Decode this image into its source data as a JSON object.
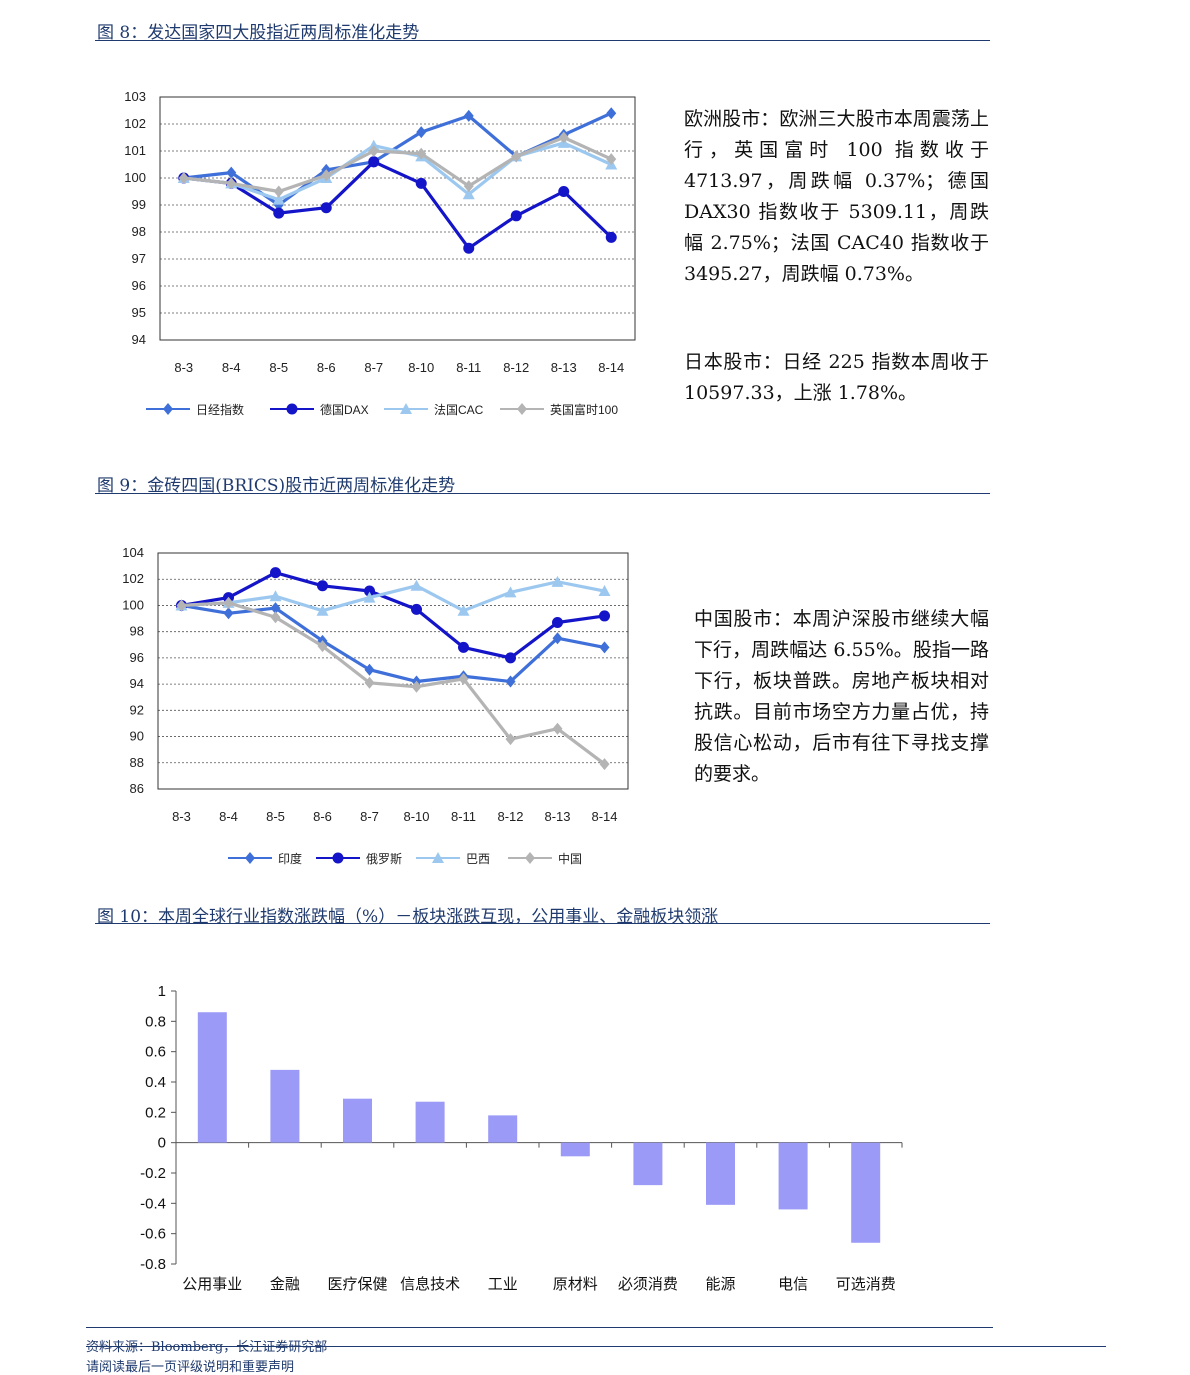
{
  "figures": {
    "fig8_title": "图 8：发达国家四大股指近两周标准化走势",
    "fig9_title": "图 9：金砖四国(BRICS)股市近两周标准化走势",
    "fig10_title": "图 10：本周全球行业指数涨跌幅（%）－板块涨跌互现，公用事业、金融板块领涨"
  },
  "commentary": {
    "europe": "欧洲股市：欧洲三大股市本周震荡上行，英国富时 100 指数收于 4713.97，周跌幅 0.37%；德国 DAX30 指数收于 5309.11，周跌幅 2.75%；法国 CAC40 指数收于 3495.27，周跌幅 0.73%。",
    "japan": "日本股市：日经 225 指数本周收于 10597.33，上涨 1.78%。",
    "china": "中国股市：本周沪深股市继续大幅下行，周跌幅达 6.55%。股指一路下行，板块普跌。房地产板块相对抗跌。目前市场空方力量占优，持股信心松动，后市有往下寻找支撑的要求。"
  },
  "footer": {
    "source": "资料来源：Bloomberg，长江证券研究部",
    "disclaimer": "请阅读最后一页评级说明和重要声明"
  },
  "chart_data": [
    {
      "type": "line",
      "categories": [
        "8-3",
        "8-4",
        "8-5",
        "8-6",
        "8-7",
        "8-10",
        "8-11",
        "8-12",
        "8-13",
        "8-14"
      ],
      "ylim": [
        94,
        103
      ],
      "yticks": [
        94,
        95,
        96,
        97,
        98,
        99,
        100,
        101,
        102,
        103
      ],
      "grid": true,
      "legend_position": "bottom",
      "series": [
        {
          "name": "日经指数",
          "color": "#3f6fd8",
          "marker": "diamond",
          "values": [
            100,
            100.2,
            99.0,
            100.3,
            100.6,
            101.7,
            102.3,
            100.8,
            101.6,
            102.4
          ]
        },
        {
          "name": "德国DAX",
          "color": "#1414c8",
          "marker": "circle",
          "values": [
            100,
            99.8,
            98.7,
            98.9,
            100.6,
            99.8,
            97.4,
            98.6,
            99.5,
            97.8
          ]
        },
        {
          "name": "法国CAC",
          "color": "#9cc8f0",
          "marker": "triangle",
          "values": [
            100,
            99.8,
            99.2,
            100.0,
            101.2,
            100.8,
            99.4,
            100.8,
            101.3,
            100.5
          ]
        },
        {
          "name": "英国富时100",
          "color": "#b4b4b4",
          "marker": "diamond",
          "values": [
            100,
            99.8,
            99.5,
            100.1,
            101.0,
            100.9,
            99.7,
            100.8,
            101.5,
            100.7
          ]
        }
      ]
    },
    {
      "type": "line",
      "categories": [
        "8-3",
        "8-4",
        "8-5",
        "8-6",
        "8-7",
        "8-10",
        "8-11",
        "8-12",
        "8-13",
        "8-14"
      ],
      "ylim": [
        86,
        104
      ],
      "yticks": [
        86,
        88,
        90,
        92,
        94,
        96,
        98,
        100,
        102,
        104
      ],
      "grid": true,
      "legend_position": "bottom",
      "series": [
        {
          "name": "印度",
          "color": "#3f6fd8",
          "marker": "diamond",
          "values": [
            100,
            99.4,
            99.8,
            97.3,
            95.1,
            94.2,
            94.6,
            94.2,
            97.5,
            96.8
          ]
        },
        {
          "name": "俄罗斯",
          "color": "#1414c8",
          "marker": "circle",
          "values": [
            100,
            100.6,
            102.5,
            101.5,
            101.1,
            99.7,
            96.8,
            96.0,
            98.7,
            99.2
          ]
        },
        {
          "name": "巴西",
          "color": "#9cc8f0",
          "marker": "triangle",
          "values": [
            100,
            100.2,
            100.7,
            99.6,
            100.6,
            101.5,
            99.6,
            101.0,
            101.8,
            101.1
          ]
        },
        {
          "name": "中国",
          "color": "#b4b4b4",
          "marker": "diamond",
          "values": [
            100,
            100.2,
            99.1,
            96.9,
            94.1,
            93.8,
            94.4,
            89.8,
            90.6,
            87.9
          ]
        }
      ]
    },
    {
      "type": "bar",
      "categories": [
        "公用事业",
        "金融",
        "医疗保健",
        "信息技术",
        "工业",
        "原材料",
        "必须消费",
        "能源",
        "电信",
        "可选消费"
      ],
      "values": [
        0.86,
        0.48,
        0.29,
        0.27,
        0.18,
        -0.09,
        -0.28,
        -0.41,
        -0.44,
        -0.66
      ],
      "ylim": [
        -0.8,
        1
      ],
      "yticks": [
        -0.8,
        -0.6,
        -0.4,
        -0.2,
        0,
        0.2,
        0.4,
        0.6,
        0.8,
        1
      ],
      "ytick_labels": [
        "-0.8",
        "-0.6",
        "-0.4",
        "-0.2",
        "0",
        "0.2",
        "0.4",
        "0.6",
        "0.8",
        "1"
      ],
      "color": "#9b9bf7",
      "grid": false
    }
  ]
}
